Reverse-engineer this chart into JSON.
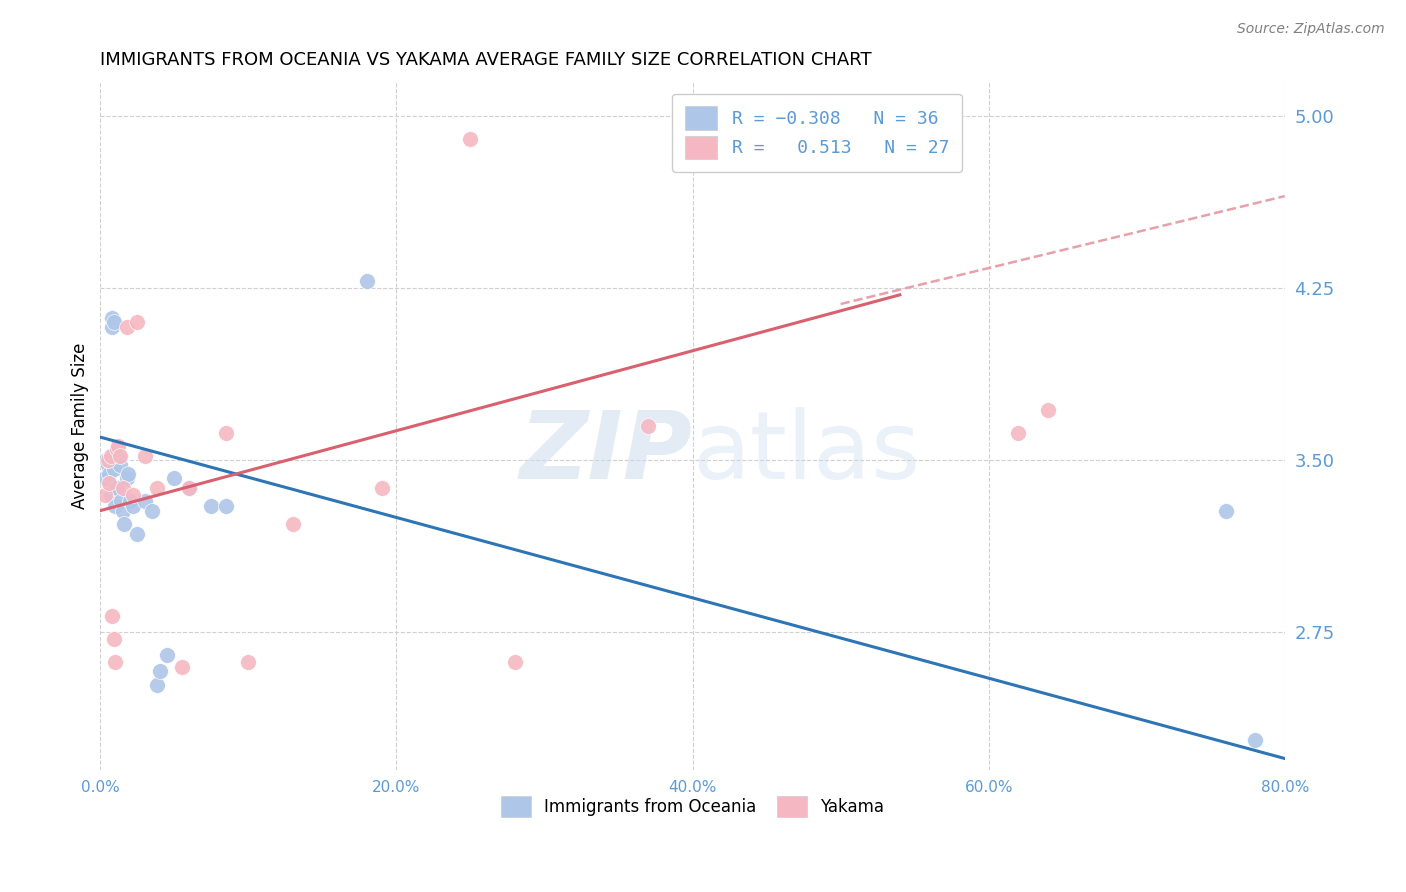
{
  "title": "IMMIGRANTS FROM OCEANIA VS YAKAMA AVERAGE FAMILY SIZE CORRELATION CHART",
  "source": "Source: ZipAtlas.com",
  "ylabel": "Average Family Size",
  "xlim": [
    0.0,
    0.8
  ],
  "ylim": [
    2.15,
    5.15
  ],
  "yticks": [
    2.75,
    3.5,
    4.25,
    5.0
  ],
  "xtick_vals": [
    0.0,
    0.2,
    0.4,
    0.6,
    0.8
  ],
  "xtick_labels": [
    "0.0%",
    "20.0%",
    "40.0%",
    "60.0%",
    "80.0%"
  ],
  "background_color": "#ffffff",
  "grid_color": "#d0d0d0",
  "right_axis_color": "#5b9bd5",
  "blue_color": "#aec6e8",
  "pink_color": "#f5b8c2",
  "blue_line_color": "#2e75b6",
  "pink_line_color": "#d9606e",
  "dashed_color": "#e8a0aa",
  "watermark_color": "#ccdcee",
  "blue_scatter_x": [
    0.003,
    0.004,
    0.005,
    0.006,
    0.006,
    0.007,
    0.007,
    0.008,
    0.008,
    0.009,
    0.009,
    0.01,
    0.01,
    0.011,
    0.012,
    0.013,
    0.014,
    0.015,
    0.016,
    0.018,
    0.019,
    0.02,
    0.022,
    0.025,
    0.03,
    0.035,
    0.038,
    0.04,
    0.045,
    0.05,
    0.06,
    0.075,
    0.085,
    0.18,
    0.76,
    0.78
  ],
  "blue_scatter_y": [
    3.42,
    3.5,
    3.48,
    3.44,
    3.5,
    3.35,
    3.52,
    4.08,
    4.12,
    4.1,
    3.46,
    3.38,
    3.3,
    3.38,
    3.52,
    3.48,
    3.32,
    3.28,
    3.22,
    3.42,
    3.44,
    3.32,
    3.3,
    3.18,
    3.32,
    3.28,
    2.52,
    2.58,
    2.65,
    3.42,
    3.38,
    3.3,
    3.3,
    4.28,
    3.28,
    2.28
  ],
  "pink_scatter_x": [
    0.003,
    0.005,
    0.006,
    0.007,
    0.008,
    0.009,
    0.01,
    0.011,
    0.012,
    0.013,
    0.015,
    0.018,
    0.022,
    0.025,
    0.03,
    0.038,
    0.055,
    0.06,
    0.085,
    0.1,
    0.13,
    0.19,
    0.25,
    0.28,
    0.37,
    0.62,
    0.64
  ],
  "pink_scatter_y": [
    3.35,
    3.5,
    3.4,
    3.52,
    2.82,
    2.72,
    2.62,
    3.55,
    3.56,
    3.52,
    3.38,
    4.08,
    3.35,
    4.1,
    3.52,
    3.38,
    2.6,
    3.38,
    3.62,
    2.62,
    3.22,
    3.38,
    4.9,
    2.62,
    3.65,
    3.62,
    3.72
  ],
  "blue_line_x": [
    0.0,
    0.8
  ],
  "blue_line_y": [
    3.6,
    2.2
  ],
  "pink_line_x": [
    0.0,
    0.54
  ],
  "pink_line_y": [
    3.28,
    4.22
  ],
  "dashed_line_x": [
    0.5,
    0.8
  ],
  "dashed_line_y": [
    4.18,
    4.65
  ],
  "legend_items": [
    {
      "label": "R = -0.308   N = 36",
      "color": "#aec6e8"
    },
    {
      "label": "R =   0.513   N = 27",
      "color": "#f5b8c2"
    }
  ],
  "bottom_legend": [
    {
      "label": "Immigrants from Oceania",
      "color": "#aec6e8"
    },
    {
      "label": "Yakama",
      "color": "#f5b8c2"
    }
  ]
}
